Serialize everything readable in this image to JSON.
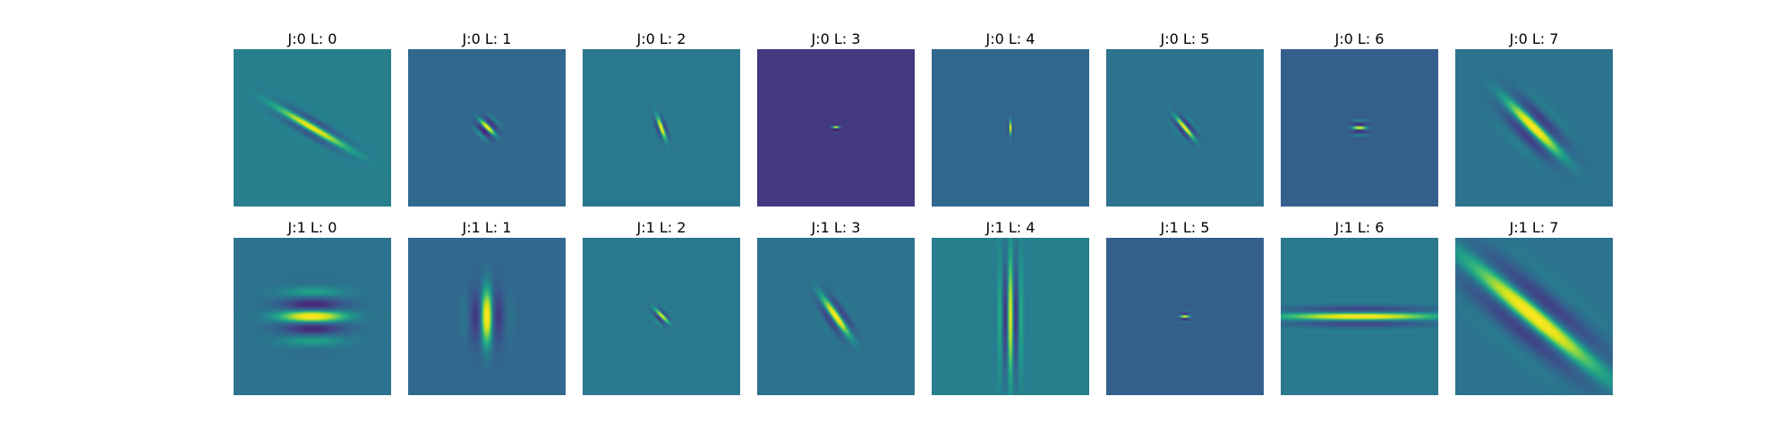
{
  "colors": {
    "cmap": "viridis"
  },
  "panels": [
    {
      "title": "J:0 L: 0",
      "j": 0,
      "l": 0,
      "background": "#277f8e",
      "pattern": {
        "type": "gabor",
        "sigma": 0.17,
        "aspect": 0.22,
        "theta": -30,
        "freq": 9,
        "amp": 0.9,
        "phase": 0
      }
    },
    {
      "title": "J:0 L: 1",
      "j": 0,
      "l": 1,
      "background": "#31688e",
      "pattern": {
        "type": "gabor",
        "sigma": 0.045,
        "aspect": 0.8,
        "theta": -45,
        "freq": 14,
        "amp": 1.0,
        "phase": 0.5
      }
    },
    {
      "title": "J:0 L: 2",
      "j": 0,
      "l": 2,
      "background": "#2a788e",
      "pattern": {
        "type": "gabor",
        "sigma": 0.05,
        "aspect": 0.45,
        "theta": -70,
        "freq": 16,
        "amp": 1.0,
        "phase": 0
      }
    },
    {
      "title": "J:0 L: 3",
      "j": 0,
      "l": 3,
      "background": "#443983",
      "pattern": {
        "type": "gabor",
        "sigma": 0.015,
        "aspect": 1.0,
        "theta": 0,
        "freq": 25,
        "amp": 1.0,
        "phase": 0.8
      }
    },
    {
      "title": "J:0 L: 4",
      "j": 0,
      "l": 4,
      "background": "#31688e",
      "pattern": {
        "type": "gabor",
        "sigma": 0.03,
        "aspect": 0.35,
        "theta": 90,
        "freq": 25,
        "amp": 1.0,
        "phase": 0
      }
    },
    {
      "title": "J:0 L: 5",
      "j": 0,
      "l": 5,
      "background": "#2c728e",
      "pattern": {
        "type": "gabor",
        "sigma": 0.06,
        "aspect": 0.45,
        "theta": -50,
        "freq": 16,
        "amp": 1.0,
        "phase": 0
      }
    },
    {
      "title": "J:0 L: 6",
      "j": 0,
      "l": 6,
      "background": "#355f8d",
      "pattern": {
        "type": "gabor",
        "sigma": 0.03,
        "aspect": 0.9,
        "theta": 0,
        "freq": 20,
        "amp": 1.0,
        "phase": 0
      }
    },
    {
      "title": "J:0 L: 7",
      "j": 0,
      "l": 7,
      "background": "#2c728e",
      "pattern": {
        "type": "gabor",
        "sigma": 0.16,
        "aspect": 0.42,
        "theta": -45,
        "freq": 6,
        "amp": 1.0,
        "phase": 0
      }
    },
    {
      "title": "J:1 L: 0",
      "j": 1,
      "l": 0,
      "background": "#2c728e",
      "pattern": {
        "type": "gabor",
        "sigma": 0.14,
        "aspect": 0.7,
        "theta": 0,
        "freq": 6,
        "amp": 1.0,
        "phase": 0
      }
    },
    {
      "title": "J:1 L: 1",
      "j": 1,
      "l": 1,
      "background": "#31688e",
      "pattern": {
        "type": "gabor",
        "sigma": 0.12,
        "aspect": 0.55,
        "theta": 90,
        "freq": 6,
        "amp": 1.0,
        "phase": 0
      }
    },
    {
      "title": "J:1 L: 2",
      "j": 1,
      "l": 2,
      "background": "#2a788e",
      "pattern": {
        "type": "gabor",
        "sigma": 0.04,
        "aspect": 0.6,
        "theta": -45,
        "freq": 18,
        "amp": 0.9,
        "phase": 0.6
      }
    },
    {
      "title": "J:1 L: 3",
      "j": 1,
      "l": 3,
      "background": "#2c728e",
      "pattern": {
        "type": "gabor",
        "sigma": 0.1,
        "aspect": 0.4,
        "theta": -55,
        "freq": 9,
        "amp": 1.0,
        "phase": 0
      }
    },
    {
      "title": "J:1 L: 4",
      "j": 1,
      "l": 4,
      "background": "#277f8e",
      "pattern": {
        "type": "gabor",
        "sigma": 0.25,
        "aspect": 0.18,
        "theta": 90,
        "freq": 14,
        "amp": 0.85,
        "phase": 0
      }
    },
    {
      "title": "J:1 L: 5",
      "j": 1,
      "l": 5,
      "background": "#355f8d",
      "pattern": {
        "type": "gabor",
        "sigma": 0.02,
        "aspect": 0.9,
        "theta": 0,
        "freq": 25,
        "amp": 1.0,
        "phase": 0
      }
    },
    {
      "title": "J:1 L: 6",
      "j": 1,
      "l": 6,
      "background": "#2a788e",
      "pattern": {
        "type": "gabor",
        "sigma": 0.32,
        "aspect": 0.13,
        "theta": 0,
        "freq": 9,
        "amp": 1.0,
        "phase": 0
      }
    },
    {
      "title": "J:1 L: 7",
      "j": 1,
      "l": 7,
      "background": "#2c728e",
      "pattern": {
        "type": "gabor",
        "sigma": 0.36,
        "aspect": 0.3,
        "theta": -40,
        "freq": 3.5,
        "amp": 1.0,
        "phase": 0
      }
    }
  ]
}
